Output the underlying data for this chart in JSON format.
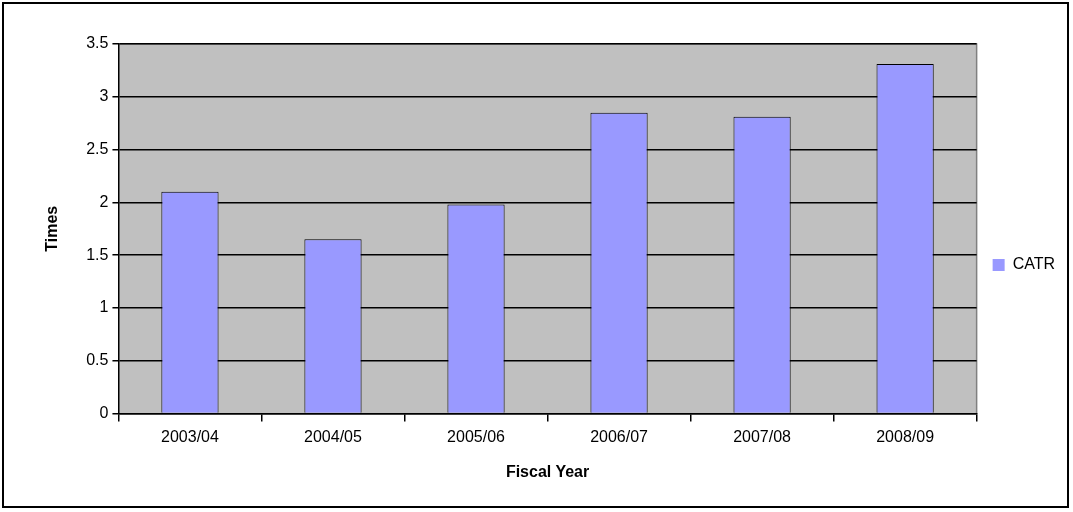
{
  "chart_data": {
    "type": "bar",
    "xlabel": "Fiscal Year",
    "ylabel": "Times",
    "categories": [
      "2003/04",
      "2004/05",
      "2005/06",
      "2006/07",
      "2007/08",
      "2008/09"
    ],
    "series": [
      {
        "name": "CATR",
        "color": "#9999ff",
        "values": [
          2.1,
          1.65,
          1.98,
          2.85,
          2.81,
          3.31
        ]
      }
    ],
    "ylim": [
      0,
      3.5
    ],
    "yticks": [
      0,
      0.5,
      1,
      1.5,
      2,
      2.5,
      3,
      3.5
    ],
    "grid": "y",
    "legend": "right"
  }
}
